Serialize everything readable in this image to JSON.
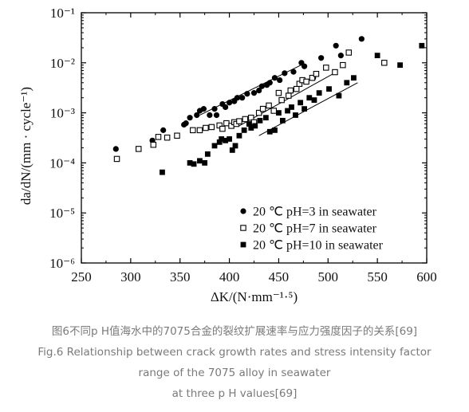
{
  "chart_data": {
    "type": "scatter",
    "title": "",
    "xlabel": "ΔK/(N·mm⁻¹·⁵)",
    "ylabel": "da/dN/(mm · cycle⁻¹)",
    "xlim": [
      250,
      600
    ],
    "ylim": [
      1e-06,
      0.1
    ],
    "yscale": "log",
    "x_ticks": [
      "250",
      "300",
      "350",
      "400",
      "450",
      "500",
      "550",
      "600"
    ],
    "y_ticks": [
      "10⁻⁶",
      "10⁻⁵",
      "10⁻⁴",
      "10⁻³",
      "10⁻²",
      "10⁻¹"
    ],
    "legend_position": "bottom-right",
    "series": [
      {
        "name": "20 ℃ pH=3 in seawater",
        "marker": "filled-circle",
        "points": [
          [
            285,
            0.00019
          ],
          [
            322,
            0.00028
          ],
          [
            333,
            0.00045
          ],
          [
            354,
            0.00058
          ],
          [
            356,
            0.00062
          ],
          [
            360,
            0.0008
          ],
          [
            367,
            0.0009
          ],
          [
            370,
            0.0011
          ],
          [
            374,
            0.0012
          ],
          [
            380,
            0.0009
          ],
          [
            385,
            0.0012
          ],
          [
            387,
            0.0009
          ],
          [
            393,
            0.0015
          ],
          [
            396,
            0.0013
          ],
          [
            400,
            0.0016
          ],
          [
            405,
            0.0017
          ],
          [
            408,
            0.002
          ],
          [
            413,
            0.002
          ],
          [
            418,
            0.0024
          ],
          [
            425,
            0.0025
          ],
          [
            430,
            0.0028
          ],
          [
            433,
            0.0034
          ],
          [
            438,
            0.0036
          ],
          [
            441,
            0.004
          ],
          [
            446,
            0.005
          ],
          [
            451,
            0.0045
          ],
          [
            456,
            0.0062
          ],
          [
            465,
            0.0066
          ],
          [
            473,
            0.01
          ],
          [
            476,
            0.0085
          ],
          [
            485,
            0.005
          ],
          [
            493,
            0.0125
          ],
          [
            508,
            0.022
          ],
          [
            513,
            0.014
          ],
          [
            534,
            0.03
          ]
        ],
        "trend": [
          [
            370,
            0.0009
          ],
          [
            475,
            0.0095
          ]
        ]
      },
      {
        "name": "20 ℃ pH=7 in seawater",
        "marker": "open-square",
        "points": [
          [
            286,
            0.00012
          ],
          [
            308,
            0.00019
          ],
          [
            323,
            0.00023
          ],
          [
            328,
            0.00033
          ],
          [
            337,
            0.00032
          ],
          [
            347,
            0.00035
          ],
          [
            363,
            0.00045
          ],
          [
            370,
            0.00045
          ],
          [
            376,
            0.0005
          ],
          [
            382,
            0.00052
          ],
          [
            390,
            0.00056
          ],
          [
            393,
            0.00048
          ],
          [
            397,
            0.00062
          ],
          [
            402,
            0.00055
          ],
          [
            405,
            0.00065
          ],
          [
            407,
            0.0006
          ],
          [
            410,
            0.00068
          ],
          [
            416,
            0.00075
          ],
          [
            422,
            0.0008
          ],
          [
            425,
            0.00065
          ],
          [
            430,
            0.001
          ],
          [
            434,
            0.0012
          ],
          [
            440,
            0.0014
          ],
          [
            445,
            0.0011
          ],
          [
            450,
            0.0025
          ],
          [
            453,
            0.0018
          ],
          [
            460,
            0.0022
          ],
          [
            462,
            0.0028
          ],
          [
            468,
            0.003
          ],
          [
            471,
            0.0038
          ],
          [
            474,
            0.0045
          ],
          [
            478,
            0.0042
          ],
          [
            484,
            0.005
          ],
          [
            488,
            0.006
          ],
          [
            498,
            0.008
          ],
          [
            507,
            0.0065
          ],
          [
            515,
            0.009
          ],
          [
            521,
            0.016
          ],
          [
            557,
            0.01
          ]
        ],
        "trend": [
          [
            410,
            0.00055
          ],
          [
            505,
            0.006
          ]
        ]
      },
      {
        "name": "20 ℃ pH=10 in seawater",
        "marker": "filled-square",
        "points": [
          [
            332,
            6.5e-05
          ],
          [
            360,
            0.0001
          ],
          [
            364,
            9.5e-05
          ],
          [
            370,
            0.00011
          ],
          [
            375,
            0.0001
          ],
          [
            378,
            0.00015
          ],
          [
            385,
            0.00022
          ],
          [
            390,
            0.00026
          ],
          [
            392,
            0.0003
          ],
          [
            396,
            0.00028
          ],
          [
            400,
            0.0003
          ],
          [
            403,
            0.00018
          ],
          [
            406,
            0.00022
          ],
          [
            410,
            0.00035
          ],
          [
            415,
            0.00045
          ],
          [
            420,
            0.0006
          ],
          [
            422,
            0.0005
          ],
          [
            426,
            0.00055
          ],
          [
            431,
            0.0007
          ],
          [
            437,
            0.0008
          ],
          [
            441,
            0.00042
          ],
          [
            446,
            0.00045
          ],
          [
            450,
            0.001
          ],
          [
            454,
            0.0007
          ],
          [
            459,
            0.0011
          ],
          [
            463,
            0.0013
          ],
          [
            467,
            0.0009
          ],
          [
            472,
            0.0016
          ],
          [
            476,
            0.0012
          ],
          [
            481,
            0.002
          ],
          [
            486,
            0.0018
          ],
          [
            491,
            0.0025
          ],
          [
            501,
            0.003
          ],
          [
            511,
            0.0022
          ],
          [
            519,
            0.004
          ],
          [
            526,
            0.005
          ],
          [
            550,
            0.014
          ],
          [
            573,
            0.009
          ],
          [
            595,
            0.022
          ]
        ],
        "trend": [
          [
            430,
            0.00035
          ],
          [
            530,
            0.004
          ]
        ]
      }
    ]
  },
  "caption": {
    "line1": "图6不同p H值海水中的7075合金的裂纹扩展速率与应力强度因子的关系[69]",
    "line2": "Fig.6 Relationship between crack growth rates and stress intensity factor",
    "line3": "range of the 7075 alloy in seawater",
    "line4": "at three p H values[69]"
  }
}
